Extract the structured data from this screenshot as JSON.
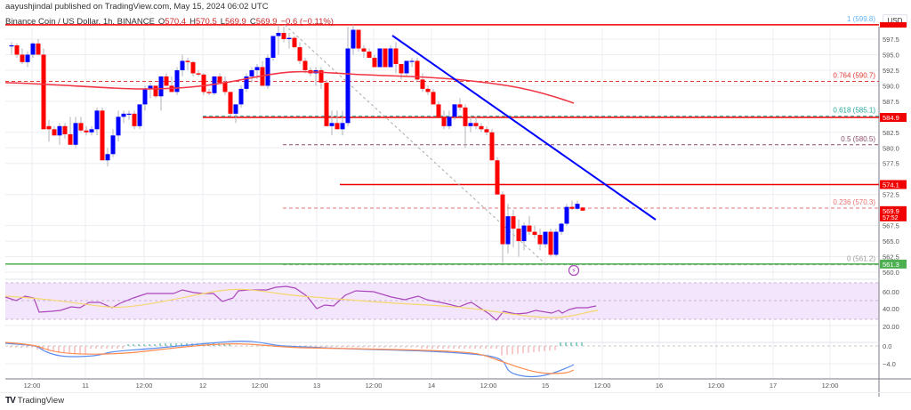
{
  "header": {
    "published": "aayushjindal published on TradingView.com, May 15, 2024 06:02 UTC",
    "symbol": "Binance Coin / US Dollar, 1h, BINANCE",
    "open_label": "O",
    "open": "570.4",
    "high_label": "H",
    "high": "570.5",
    "low_label": "L",
    "low": "569.9",
    "close_label": "C",
    "close": "569.9",
    "change": "−0.6 (−0.11%)"
  },
  "price_axis": {
    "currency": "USD",
    "ticks": [
      "597.5",
      "595.0",
      "592.5",
      "590.0",
      "587.5",
      "582.5",
      "580.0",
      "577.5",
      "572.5",
      "567.5",
      "565.0",
      "562.5",
      "560.0"
    ],
    "badges": [
      {
        "value": "584.9",
        "color": "#f00000"
      },
      {
        "value": "574.1",
        "color": "#f00000"
      },
      {
        "value": "569.9",
        "sub": "57:52",
        "color": "#f00000"
      },
      {
        "value": "561.3",
        "color": "#4caf50"
      }
    ]
  },
  "fib_levels": [
    {
      "ratio": "1",
      "label": "1 (599.8)",
      "price": 599.8,
      "color": "#64b5f6"
    },
    {
      "ratio": "0.764",
      "label": "0.764 (590.7)",
      "price": 590.7,
      "color": "#e53935"
    },
    {
      "ratio": "0.618",
      "label": "0.618 (585.1)",
      "price": 585.1,
      "color": "#26a69a"
    },
    {
      "ratio": "0.5",
      "label": "0.5 (580.5)",
      "price": 580.5,
      "color": "#8e4a6e"
    },
    {
      "ratio": "0.236",
      "label": "0.236 (570.3)",
      "price": 570.3,
      "color": "#e57373"
    },
    {
      "ratio": "0",
      "label": "0 (561.2)",
      "price": 561.2,
      "color": "#9e9e9e"
    }
  ],
  "horizontal_lines": [
    {
      "name": "resistance-599.8",
      "price": 599.8,
      "color": "#f00000"
    },
    {
      "name": "resistance-584.9",
      "price": 584.9,
      "color": "#f00000"
    },
    {
      "name": "resistance-574.1",
      "price": 574.1,
      "color": "#f00000"
    },
    {
      "name": "support-561.3",
      "price": 561.3,
      "color": "#4caf50"
    }
  ],
  "rsi_axis": {
    "ticks": [
      "60.00",
      "40.00",
      "20.00"
    ]
  },
  "macd_axis": {
    "ticks": [
      "0.0",
      "−4.0"
    ]
  },
  "time_axis": {
    "ticks": [
      "12:00",
      "11",
      "12:00",
      "12",
      "12:00",
      "13",
      "12:00",
      "14",
      "12:00",
      "15",
      "12:00",
      "16",
      "12:00",
      "17",
      "12:00"
    ]
  },
  "footer": {
    "brand": "TradingView",
    "logo": "TV"
  },
  "colors": {
    "bull": "#0000ff",
    "bear": "#ff0000",
    "ma": "#f23645",
    "trendline": "#0000ff",
    "rsi": "#ab47bc",
    "rsi_ma": "#f5d76e",
    "macd": "#5b8def",
    "signal": "#ff8a50"
  },
  "chart_data": {
    "type": "candlestick",
    "title": "Binance Coin / US Dollar, 1h, BINANCE",
    "xlabel": "",
    "ylabel": "USD",
    "ylim": [
      559,
      601
    ],
    "x_range": "May 10 12:00 – May 15 ~06:00 (1h candles)",
    "approx_close_path": [
      {
        "t": "May 10 12:00",
        "price": 596.5
      },
      {
        "t": "May 10 20:00",
        "price": 583.5
      },
      {
        "t": "May 11 00:00",
        "price": 583.0
      },
      {
        "t": "May 11 10:00",
        "price": 582.0
      },
      {
        "t": "May 11 18:00",
        "price": 591.0
      },
      {
        "t": "May 12 00:00",
        "price": 593.5
      },
      {
        "t": "May 12 12:00",
        "price": 590.0
      },
      {
        "t": "May 12 20:00",
        "price": 596.0
      },
      {
        "t": "May 12 23:00",
        "price": 599.5
      },
      {
        "t": "May 13 06:00",
        "price": 596.0
      },
      {
        "t": "May 13 08:00",
        "price": 586.5
      },
      {
        "t": "May 13 12:00",
        "price": 598.0
      },
      {
        "t": "May 13 18:00",
        "price": 596.0
      },
      {
        "t": "May 14 00:00",
        "price": 592.0
      },
      {
        "t": "May 14 06:00",
        "price": 588.0
      },
      {
        "t": "May 14 12:00",
        "price": 586.0
      },
      {
        "t": "May 14 16:00",
        "price": 581.0
      },
      {
        "t": "May 14 18:00",
        "price": 568.0
      },
      {
        "t": "May 14 22:00",
        "price": 566.0
      },
      {
        "t": "May 15 02:00",
        "price": 563.5
      },
      {
        "t": "May 15 06:00",
        "price": 569.9
      }
    ],
    "moving_average": {
      "name": "100 SMA (red)",
      "start": 590.5,
      "end": 587.7
    },
    "trendline": {
      "from": {
        "t": "May 13 18:00",
        "price": 598.5
      },
      "to": {
        "t": "May 15 10:00",
        "price": 568.5
      },
      "color": "blue"
    },
    "fibonacci": {
      "high": 599.8,
      "low": 561.2,
      "levels": {
        "1": 599.8,
        "0.764": 590.7,
        "0.618": 585.1,
        "0.5": 580.5,
        "0.236": 570.3,
        "0": 561.2
      }
    },
    "indicators": {
      "rsi": {
        "last": 42,
        "range_band": [
          30,
          70
        ],
        "ticks": [
          60,
          40,
          20
        ]
      },
      "macd": {
        "ticks": [
          0.0,
          -4.0
        ],
        "trend": "recovering from ~-5.5 toward -4"
      }
    }
  }
}
